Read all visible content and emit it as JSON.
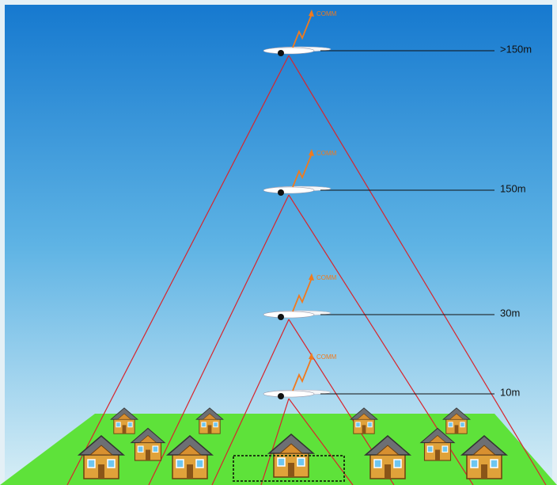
{
  "altitudes": [
    {
      "label": ">150m",
      "comm": "COMM"
    },
    {
      "label": "150m",
      "comm": "COMM"
    },
    {
      "label": "30m",
      "comm": "COMM"
    },
    {
      "label": "10m",
      "comm": "COMM"
    }
  ]
}
